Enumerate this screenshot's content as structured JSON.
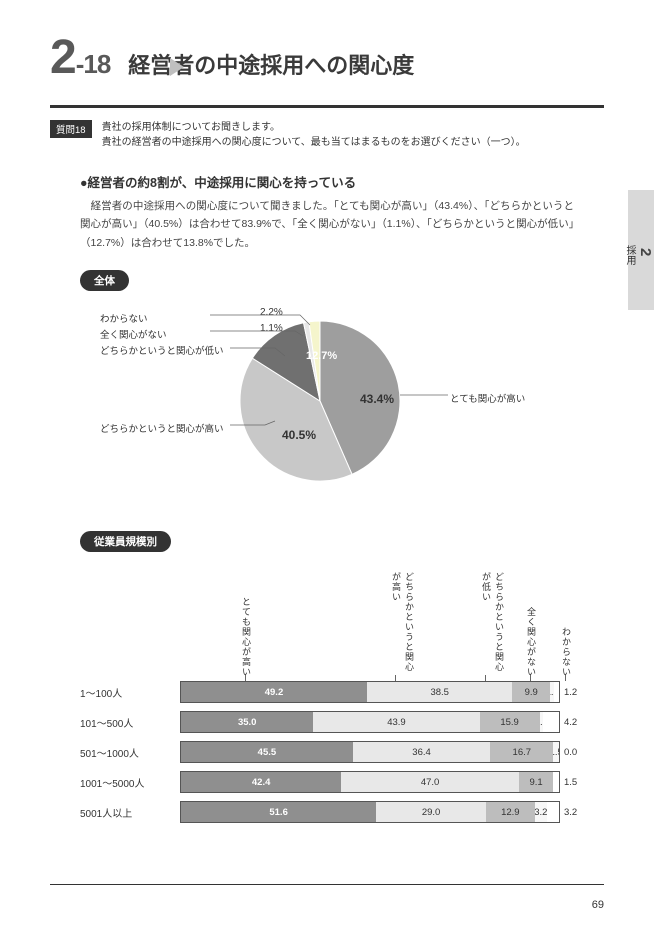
{
  "header": {
    "chapter_major": "2",
    "chapter_minor": "-18",
    "title": "経営者の中途採用への関心度"
  },
  "question": {
    "tag": "質問18",
    "line1": "貴社の採用体制についてお聞きします。",
    "line2": "貴社の経営者の中途採用への関心度について、最も当てはまるものをお選びください（一つ）。"
  },
  "subheading": "●経営者の約8割が、中途採用に関心を持っている",
  "body_text": "　経営者の中途採用への関心度について聞きました。「とても関心が高い」（43.4%）、「どちらかというと関心が高い」（40.5%）は合わせて83.9%で、「全く関心がない」（1.1%）、「どちらかというと関心が低い」（12.7%）は合わせて13.8%でした。",
  "pie": {
    "label": "全体",
    "slices": [
      {
        "name": "とても関心が高い",
        "value": 43.4,
        "color": "#9e9e9e",
        "text": "43.4%"
      },
      {
        "name": "どちらかというと関心が高い",
        "value": 40.5,
        "color": "#c8c8c8",
        "text": "40.5%"
      },
      {
        "name": "どちらかというと関心が低い",
        "value": 12.7,
        "color": "#707070",
        "text": "12.7%"
      },
      {
        "name": "全く関心がない",
        "value": 1.1,
        "color": "#e8e8e8",
        "text": "1.1%"
      },
      {
        "name": "わからない",
        "value": 2.2,
        "color": "#f5f5cc",
        "text": "2.2%"
      }
    ],
    "legend_right": "とても関心が高い",
    "legend_left_1": "わからない",
    "legend_left_2": "全く関心がない",
    "legend_left_3": "どちらかというと関心が低い",
    "legend_left_4": "どちらかというと関心が高い"
  },
  "bars": {
    "label": "従業員規模別",
    "headers": [
      "とても関心が高い",
      "どちらかというと関心が高い",
      "どちらかというと関心が低い",
      "全く関心がない",
      "わからない"
    ],
    "rows": [
      {
        "label": "1〜100人",
        "vals": [
          49.2,
          38.5,
          9.9,
          1.2
        ],
        "trail": "1.2"
      },
      {
        "label": "101〜500人",
        "vals": [
          35.0,
          43.9,
          15.9,
          0.9
        ],
        "trail": "4.2"
      },
      {
        "label": "501〜1000人",
        "vals": [
          45.5,
          36.4,
          16.7,
          1.5
        ],
        "trail": "0.0"
      },
      {
        "label": "1001〜5000人",
        "vals": [
          42.4,
          47.0,
          9.1,
          0.0
        ],
        "trail": "1.5"
      },
      {
        "label": "5001人以上",
        "vals": [
          51.6,
          29.0,
          12.9,
          3.2
        ],
        "trail": "3.2"
      }
    ],
    "colors": [
      "#8f8f8f",
      "#e8e8e8",
      "#bdbdbd",
      "#f7f7f7",
      "#ffffff"
    ]
  },
  "sidetab": {
    "num": "2",
    "label": "採用"
  },
  "page_number": "69"
}
